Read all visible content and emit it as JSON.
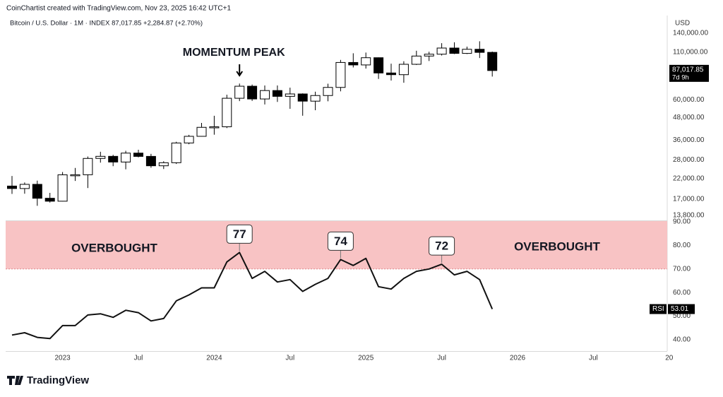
{
  "header": {
    "credit": "CoinChartist created with TradingView.com, Nov 23, 2025 16:42 UTC+1",
    "symbol": "Bitcoin / U.S. Dollar · 1M · INDEX  87,017.85  +2,284.87 (+2.70%)"
  },
  "footer": {
    "brand": "TradingView"
  },
  "chart_data": [
    {
      "type": "candlestick",
      "x": [
        "2022-09",
        "2022-10",
        "2022-11",
        "2022-12",
        "2023-01",
        "2023-02",
        "2023-03",
        "2023-04",
        "2023-05",
        "2023-06",
        "2023-07",
        "2023-08",
        "2023-09",
        "2023-10",
        "2023-11",
        "2023-12",
        "2024-01",
        "2024-02",
        "2024-03",
        "2024-04",
        "2024-05",
        "2024-06",
        "2024-07",
        "2024-08",
        "2024-09",
        "2024-10",
        "2024-11",
        "2024-12",
        "2025-01",
        "2025-02",
        "2025-03",
        "2025-04",
        "2025-05",
        "2025-06",
        "2025-07",
        "2025-08",
        "2025-09",
        "2025-10",
        "2025-11"
      ],
      "open": [
        20050,
        19430,
        20490,
        17170,
        16540,
        23130,
        23150,
        28480,
        29250,
        27210,
        30480,
        29230,
        25940,
        26970,
        34660,
        37720,
        42280,
        42580,
        61180,
        71290,
        60640,
        67470,
        62680,
        64620,
        58970,
        63330,
        70220,
        96400,
        93430,
        102400,
        84350,
        82550,
        94200,
        104600,
        107100,
        115800,
        108200,
        114000,
        109600
      ],
      "high": [
        22800,
        20990,
        21480,
        18390,
        23960,
        25250,
        29190,
        31000,
        29820,
        31390,
        31800,
        30190,
        27480,
        35200,
        38430,
        44700,
        48970,
        64000,
        73750,
        72800,
        71950,
        71980,
        70000,
        65100,
        66500,
        73600,
        99600,
        108350,
        109350,
        102750,
        95000,
        97900,
        111900,
        110500,
        123200,
        124500,
        117900,
        126200,
        110700
      ],
      "low": [
        18150,
        18190,
        15600,
        16260,
        16500,
        21400,
        19550,
        27000,
        25810,
        24800,
        28860,
        25300,
        24900,
        26550,
        34100,
        37600,
        38500,
        41880,
        59000,
        59150,
        56550,
        58400,
        53500,
        49000,
        52550,
        58900,
        66800,
        90500,
        89200,
        78200,
        76600,
        74500,
        93400,
        98200,
        105300,
        107300,
        107300,
        102000,
        80600
      ],
      "close": [
        19430,
        20490,
        17170,
        16540,
        23130,
        23150,
        28480,
        29250,
        27210,
        30480,
        29230,
        25940,
        26970,
        34660,
        37720,
        42280,
        42580,
        61180,
        71290,
        60640,
        67470,
        62680,
        64620,
        58970,
        63330,
        70220,
        96400,
        93430,
        102400,
        84350,
        82550,
        94200,
        104600,
        107100,
        115800,
        108200,
        114000,
        109600,
        87017.85
      ],
      "up_color": "#ffffff",
      "down_color": "#000000",
      "ylim": [
        12960,
        175000
      ],
      "log_scale": true,
      "y_unit": "USD",
      "yticks": [
        {
          "value": 140000,
          "label": "140,000.00"
        },
        {
          "value": 110000,
          "label": "110,000.00"
        },
        {
          "value": 60000,
          "label": "60,000.00"
        },
        {
          "value": 48000,
          "label": "48,000.00"
        },
        {
          "value": 36000,
          "label": "36,000.00"
        },
        {
          "value": 28000,
          "label": "28,000.00"
        },
        {
          "value": 22000,
          "label": "22,000.00"
        },
        {
          "value": 17000,
          "label": "17,000.00"
        },
        {
          "value": 13800,
          "label": "13,800.00"
        }
      ],
      "last_price_label": "87,017.85",
      "countdown": "7d 9h",
      "annotation": {
        "text": "MOMENTUM PEAK",
        "x": "2024-03"
      }
    },
    {
      "type": "line",
      "name": "RSI",
      "color": "#111111",
      "x": [
        "2022-09",
        "2022-10",
        "2022-11",
        "2022-12",
        "2023-01",
        "2023-02",
        "2023-03",
        "2023-04",
        "2023-05",
        "2023-06",
        "2023-07",
        "2023-08",
        "2023-09",
        "2023-10",
        "2023-11",
        "2023-12",
        "2024-01",
        "2024-02",
        "2024-03",
        "2024-04",
        "2024-05",
        "2024-06",
        "2024-07",
        "2024-08",
        "2024-09",
        "2024-10",
        "2024-11",
        "2024-12",
        "2025-01",
        "2025-02",
        "2025-03",
        "2025-04",
        "2025-05",
        "2025-06",
        "2025-07",
        "2025-08",
        "2025-09",
        "2025-10",
        "2025-11"
      ],
      "values": [
        42,
        43,
        41,
        40.5,
        46,
        46,
        50.5,
        51,
        49.5,
        52.5,
        51.5,
        48,
        49,
        56.5,
        59,
        62,
        62,
        73,
        77,
        66,
        69,
        64.5,
        65.5,
        60.5,
        63.5,
        66,
        74,
        71.5,
        74.5,
        62.5,
        61.5,
        66,
        69,
        70,
        72,
        67.5,
        69,
        65.5,
        53.01
      ],
      "value_labels": [
        null,
        null,
        null,
        null,
        null,
        null,
        null,
        null,
        null,
        null,
        null,
        null,
        null,
        null,
        null,
        null,
        null,
        null,
        "77",
        null,
        null,
        null,
        null,
        null,
        null,
        null,
        "74",
        null,
        null,
        null,
        null,
        null,
        null,
        null,
        "72",
        null,
        null,
        null,
        "53.01"
      ],
      "ylim": [
        35.2,
        90.3
      ],
      "yticks": [
        {
          "value": 90,
          "label": "90.00"
        },
        {
          "value": 80,
          "label": "80.00"
        },
        {
          "value": 70,
          "label": "70.00"
        },
        {
          "value": 60,
          "label": "60.00"
        },
        {
          "value": 50,
          "label": "50.00"
        },
        {
          "value": 40,
          "label": "40.00"
        }
      ],
      "overbought": {
        "range": [
          70,
          90
        ],
        "color": "#f8c3c4",
        "label": "OVERBOUGHT"
      },
      "xticks": [
        {
          "value": "2023-01",
          "label": "2023"
        },
        {
          "value": "2023-07",
          "label": "Jul"
        },
        {
          "value": "2024-01",
          "label": "2024"
        },
        {
          "value": "2024-07",
          "label": "Jul"
        },
        {
          "value": "2025-01",
          "label": "2025"
        },
        {
          "value": "2025-07",
          "label": "Jul"
        },
        {
          "value": "2026-01",
          "label": "2026"
        },
        {
          "value": "2026-07",
          "label": "Jul"
        },
        {
          "value": "2027-01",
          "label": "20"
        }
      ]
    }
  ]
}
